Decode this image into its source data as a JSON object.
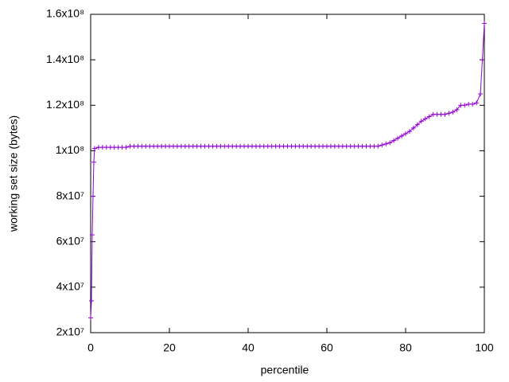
{
  "chart_data": {
    "type": "line",
    "xlabel": "percentile",
    "ylabel": "working set size (bytes)",
    "color": "#9400d3",
    "marker": "+",
    "xlim": [
      0,
      100
    ],
    "xticks": [
      0,
      20,
      40,
      60,
      80,
      100
    ],
    "ylim": [
      20000000,
      160000000
    ],
    "yticks": [
      {
        "value": 20000000,
        "label": "2x10⁷"
      },
      {
        "value": 40000000,
        "label": "4x10⁷"
      },
      {
        "value": 60000000,
        "label": "6x10⁷"
      },
      {
        "value": 80000000,
        "label": "8x10⁷"
      },
      {
        "value": 100000000,
        "label": "1x10⁸"
      },
      {
        "value": 120000000,
        "label": "1.2x10⁸"
      },
      {
        "value": 140000000,
        "label": "1.4x10⁸"
      },
      {
        "value": 160000000,
        "label": "1.6x10⁸"
      }
    ],
    "x": [
      0,
      0.2,
      0.4,
      0.6,
      0.8,
      1,
      2,
      3,
      4,
      5,
      6,
      7,
      8,
      9,
      10,
      11,
      12,
      13,
      14,
      15,
      16,
      17,
      18,
      19,
      20,
      21,
      22,
      23,
      24,
      25,
      26,
      27,
      28,
      29,
      30,
      31,
      32,
      33,
      34,
      35,
      36,
      37,
      38,
      39,
      40,
      41,
      42,
      43,
      44,
      45,
      46,
      47,
      48,
      49,
      50,
      51,
      52,
      53,
      54,
      55,
      56,
      57,
      58,
      59,
      60,
      61,
      62,
      63,
      64,
      65,
      66,
      67,
      68,
      69,
      70,
      71,
      72,
      73,
      74,
      75,
      76,
      77,
      78,
      79,
      80,
      81,
      82,
      83,
      84,
      85,
      86,
      87,
      88,
      89,
      90,
      91,
      92,
      93,
      94,
      95,
      96,
      97,
      98,
      99,
      99.5,
      100
    ],
    "values": [
      26500000,
      34000000,
      63000000,
      80000000,
      95000000,
      101000000,
      101500000,
      101500000,
      101500000,
      101500000,
      101500000,
      101500000,
      101500000,
      101500000,
      102000000,
      102000000,
      102000000,
      102000000,
      102000000,
      102000000,
      102000000,
      102000000,
      102000000,
      102000000,
      102000000,
      102000000,
      102000000,
      102000000,
      102000000,
      102000000,
      102000000,
      102000000,
      102000000,
      102000000,
      102000000,
      102000000,
      102000000,
      102000000,
      102000000,
      102000000,
      102000000,
      102000000,
      102000000,
      102000000,
      102000000,
      102000000,
      102000000,
      102000000,
      102000000,
      102000000,
      102000000,
      102000000,
      102000000,
      102000000,
      102000000,
      102000000,
      102000000,
      102000000,
      102000000,
      102000000,
      102000000,
      102000000,
      102000000,
      102000000,
      102000000,
      102000000,
      102000000,
      102000000,
      102000000,
      102000000,
      102000000,
      102000000,
      102000000,
      102000000,
      102000000,
      102000000,
      102000000,
      102000000,
      102500000,
      103000000,
      103500000,
      104500000,
      105500000,
      106500000,
      107500000,
      108500000,
      110000000,
      111500000,
      113000000,
      114000000,
      115000000,
      116000000,
      116000000,
      116000000,
      116000000,
      116500000,
      117000000,
      118000000,
      120000000,
      120000000,
      120500000,
      120500000,
      121000000,
      125000000,
      140000000,
      156000000
    ]
  }
}
